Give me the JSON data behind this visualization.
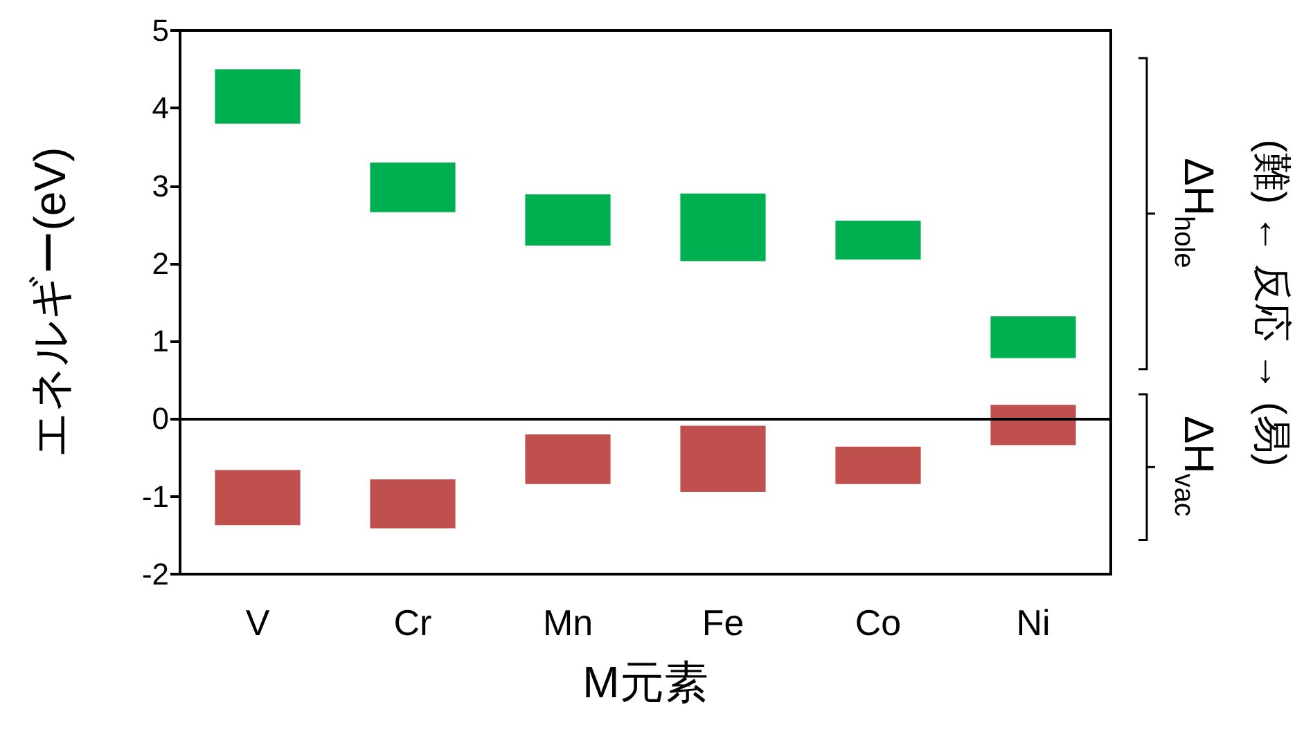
{
  "chart_data": {
    "type": "bar",
    "ylabel": "エネルギー(eV)",
    "xlabel": "M元素",
    "categories": [
      "V",
      "Cr",
      "Mn",
      "Fe",
      "Co",
      "Ni"
    ],
    "series": [
      {
        "color": "#00b050",
        "base": [
          3.8,
          2.66,
          2.23,
          2.03,
          2.05,
          0.78
        ],
        "values": [
          0.7,
          0.64,
          0.66,
          0.87,
          0.5,
          0.54
        ]
      },
      {
        "color": "#c0504d",
        "base": [
          -1.37,
          -1.41,
          -0.84,
          -0.94,
          -0.84,
          -0.34
        ],
        "values": [
          0.71,
          0.63,
          0.64,
          0.85,
          0.48,
          0.52
        ]
      }
    ],
    "ylim": [
      -2,
      5
    ],
    "yticks": [
      -2,
      -1,
      0,
      1,
      2,
      3,
      4,
      5
    ],
    "grid": false,
    "ref_lines": [
      {
        "axis": "y",
        "value": 0,
        "color": "#000000"
      }
    ],
    "annotations": [
      "ΔH$_{hole}$",
      "ΔH$_{vac}$",
      "(難) ← 反応 → (易)"
    ]
  }
}
